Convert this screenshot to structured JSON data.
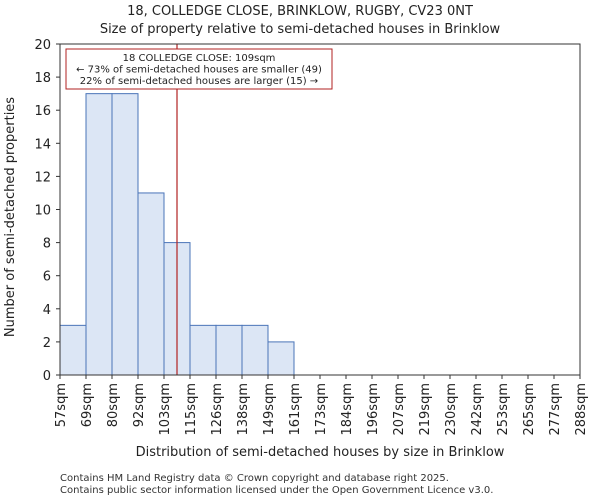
{
  "chart_data": {
    "type": "bar",
    "title": "18, COLLEDGE CLOSE, BRINKLOW, RUGBY, CV23 0NT",
    "subtitle": "Size of property relative to semi-detached houses in Brinklow",
    "xlabel": "Distribution of semi-detached houses by size in Brinklow",
    "ylabel": "Number of semi-detached properties",
    "categories": [
      "57sqm",
      "69sqm",
      "80sqm",
      "92sqm",
      "103sqm",
      "115sqm",
      "126sqm",
      "138sqm",
      "149sqm",
      "161sqm",
      "173sqm",
      "184sqm",
      "196sqm",
      "207sqm",
      "219sqm",
      "230sqm",
      "242sqm",
      "253sqm",
      "265sqm",
      "277sqm",
      "288sqm"
    ],
    "values": [
      3,
      17,
      17,
      11,
      8,
      3,
      3,
      3,
      2,
      0,
      0,
      0,
      0,
      0,
      0,
      0,
      0,
      0,
      0,
      0,
      0
    ],
    "ylim": [
      0,
      20
    ],
    "yticks": [
      0,
      2,
      4,
      6,
      8,
      10,
      12,
      14,
      16,
      18,
      20
    ],
    "grid": false,
    "bar_color": "#dce6f5",
    "bar_edge_color": "#4a74b8",
    "marker": {
      "value_sqm": 109,
      "color": "#b22222",
      "annotation": [
        "18 COLLEDGE CLOSE: 109sqm",
        "← 73% of semi-detached houses are smaller (49)",
        "22% of semi-detached houses are larger (15) →"
      ]
    }
  },
  "footer": [
    "Contains HM Land Registry data © Crown copyright and database right 2025.",
    "Contains public sector information licensed under the Open Government Licence v3.0."
  ]
}
